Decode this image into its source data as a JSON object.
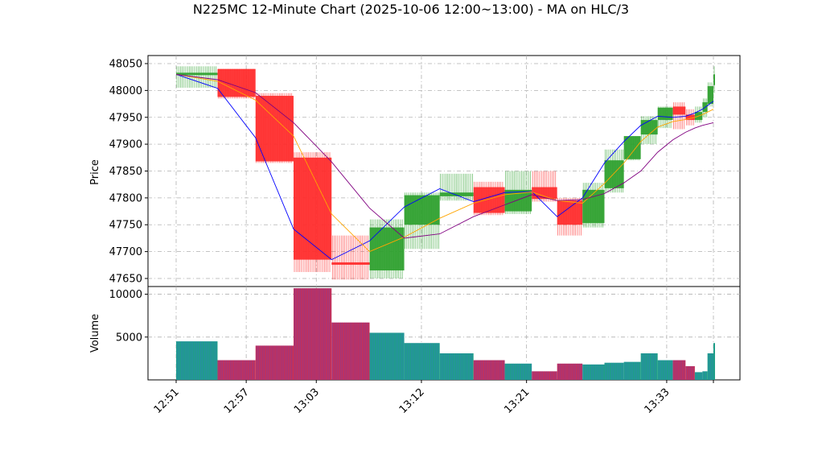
{
  "chart_data": {
    "type": "candlestick",
    "title": "N225MC 12-Minute Chart (2025-10-06 12:00~13:00) - MA on HLC/3",
    "xlabel": "",
    "price_ylabel": "Price",
    "volume_ylabel": "Volume",
    "price_yticks": [
      47650,
      47700,
      47750,
      47800,
      47850,
      47900,
      47950,
      48000,
      48050
    ],
    "volume_yticks": [
      5000,
      10000
    ],
    "price_ylim": [
      47635,
      48065
    ],
    "volume_ylim": [
      0,
      10900
    ],
    "xticks": [
      {
        "label": "12:51",
        "index": 0
      },
      {
        "label": "12:57",
        "index": 6
      },
      {
        "label": "13:03",
        "index": 12
      },
      {
        "label": "13:12",
        "index": 21
      },
      {
        "label": "13:21",
        "index": 30
      },
      {
        "label": "13:33",
        "index": 42
      }
    ],
    "x_count": 47,
    "candles": [
      {
        "x": 0.0,
        "open": 48030,
        "close": 48033,
        "high": 48045,
        "low": 48005,
        "volume": 4500
      },
      {
        "x": 4.9,
        "open": 48040,
        "close": 47988,
        "high": 48040,
        "low": 47985,
        "volume": 2300
      },
      {
        "x": 9.4,
        "open": 47990,
        "close": 47868,
        "high": 47995,
        "low": 47865,
        "volume": 4000
      },
      {
        "x": 13.9,
        "open": 47875,
        "close": 47685,
        "high": 47885,
        "low": 47662,
        "volume": 10700
      },
      {
        "x": 18.4,
        "open": 47680,
        "close": 47677,
        "high": 47730,
        "low": 47648,
        "volume": 6700
      },
      {
        "x": 22.9,
        "open": 47665,
        "close": 47745,
        "high": 47760,
        "low": 47650,
        "volume": 5500
      },
      {
        "x": 27.0,
        "open": 47750,
        "close": 47805,
        "high": 47810,
        "low": 47705,
        "volume": 4300
      },
      {
        "x": 31.2,
        "open": 47803,
        "close": 47810,
        "high": 47845,
        "low": 47795,
        "volume": 3100
      },
      {
        "x": 35.2,
        "open": 47820,
        "close": 47772,
        "high": 47830,
        "low": 47768,
        "volume": 2300
      },
      {
        "x": 38.9,
        "open": 47775,
        "close": 47815,
        "high": 47850,
        "low": 47770,
        "volume": 1900
      },
      {
        "x": 42.1,
        "open": 47820,
        "close": 47798,
        "high": 47850,
        "low": 47793,
        "volume": 1000
      },
      {
        "x": 45.1,
        "open": 47795,
        "close": 47750,
        "high": 47800,
        "low": 47730,
        "volume": 1900
      },
      {
        "x": 48.1,
        "open": 47753,
        "close": 47815,
        "high": 47828,
        "low": 47745,
        "volume": 1800
      },
      {
        "x": 50.7,
        "open": 47818,
        "close": 47870,
        "high": 47890,
        "low": 47810,
        "volume": 2000
      },
      {
        "x": 53.0,
        "open": 47872,
        "close": 47915,
        "high": 47915,
        "low": 47870,
        "volume": 2100
      },
      {
        "x": 55.0,
        "open": 47918,
        "close": 47945,
        "high": 47952,
        "low": 47900,
        "volume": 3100
      },
      {
        "x": 57.0,
        "open": 47945,
        "close": 47968,
        "high": 47970,
        "low": 47930,
        "volume": 2300
      },
      {
        "x": 58.8,
        "open": 47970,
        "close": 47955,
        "high": 47978,
        "low": 47928,
        "volume": 2300
      },
      {
        "x": 60.3,
        "open": 47955,
        "close": 47945,
        "high": 47965,
        "low": 47935,
        "volume": 1600
      },
      {
        "x": 61.4,
        "open": 47945,
        "close": 47960,
        "high": 47970,
        "low": 47940,
        "volume": 900
      },
      {
        "x": 62.3,
        "open": 47960,
        "close": 47978,
        "high": 47985,
        "low": 47950,
        "volume": 1000
      },
      {
        "x": 62.9,
        "open": 47975,
        "close": 48008,
        "high": 48015,
        "low": 47970,
        "volume": 3100
      },
      {
        "x": 63.6,
        "open": 48010,
        "close": 48030,
        "high": 48045,
        "low": 47995,
        "volume": 4300
      }
    ],
    "ma_lines": [
      {
        "color": "#0000ff",
        "points": [
          [
            0,
            48030
          ],
          [
            4.9,
            48004
          ],
          [
            9.4,
            47912
          ],
          [
            13.9,
            47742
          ],
          [
            18.4,
            47685
          ],
          [
            22.9,
            47720
          ],
          [
            27.0,
            47783
          ],
          [
            31.2,
            47817
          ],
          [
            35.2,
            47793
          ],
          [
            38.9,
            47810
          ],
          [
            42.1,
            47812
          ],
          [
            45.1,
            47765
          ],
          [
            48.1,
            47800
          ],
          [
            50.7,
            47865
          ],
          [
            53.0,
            47905
          ],
          [
            55.0,
            47935
          ],
          [
            57.0,
            47952
          ],
          [
            58.8,
            47950
          ],
          [
            60.3,
            47952
          ],
          [
            61.4,
            47958
          ],
          [
            62.3,
            47965
          ],
          [
            63.6,
            47980
          ]
        ]
      },
      {
        "color": "#ffa500",
        "points": [
          [
            0,
            48030
          ],
          [
            4.9,
            48017
          ],
          [
            9.4,
            47982
          ],
          [
            13.9,
            47915
          ],
          [
            18.4,
            47770
          ],
          [
            22.9,
            47700
          ],
          [
            27.0,
            47727
          ],
          [
            31.2,
            47762
          ],
          [
            35.2,
            47790
          ],
          [
            38.9,
            47806
          ],
          [
            42.1,
            47811
          ],
          [
            45.1,
            47795
          ],
          [
            48.1,
            47790
          ],
          [
            50.7,
            47827
          ],
          [
            53.0,
            47865
          ],
          [
            55.0,
            47905
          ],
          [
            57.0,
            47932
          ],
          [
            58.8,
            47942
          ],
          [
            60.3,
            47946
          ],
          [
            61.4,
            47950
          ],
          [
            62.3,
            47955
          ],
          [
            63.6,
            47965
          ]
        ]
      },
      {
        "color": "#800080",
        "points": [
          [
            0,
            48030
          ],
          [
            4.9,
            48020
          ],
          [
            9.4,
            47996
          ],
          [
            13.9,
            47940
          ],
          [
            18.4,
            47867
          ],
          [
            22.9,
            47781
          ],
          [
            27.0,
            47725
          ],
          [
            31.2,
            47733
          ],
          [
            35.2,
            47765
          ],
          [
            38.9,
            47787
          ],
          [
            42.1,
            47806
          ],
          [
            45.1,
            47795
          ],
          [
            48.1,
            47797
          ],
          [
            50.7,
            47808
          ],
          [
            53.0,
            47828
          ],
          [
            55.0,
            47850
          ],
          [
            57.0,
            47885
          ],
          [
            58.8,
            47908
          ],
          [
            60.3,
            47922
          ],
          [
            61.4,
            47930
          ],
          [
            62.3,
            47935
          ],
          [
            63.6,
            47940
          ]
        ]
      }
    ],
    "colors": {
      "up": "#2ca02c",
      "down": "#ff2a2a",
      "volume_up": "#1f9e89",
      "volume_down": "#c0315d",
      "grid": "#b0b0b0"
    },
    "grid": true
  }
}
